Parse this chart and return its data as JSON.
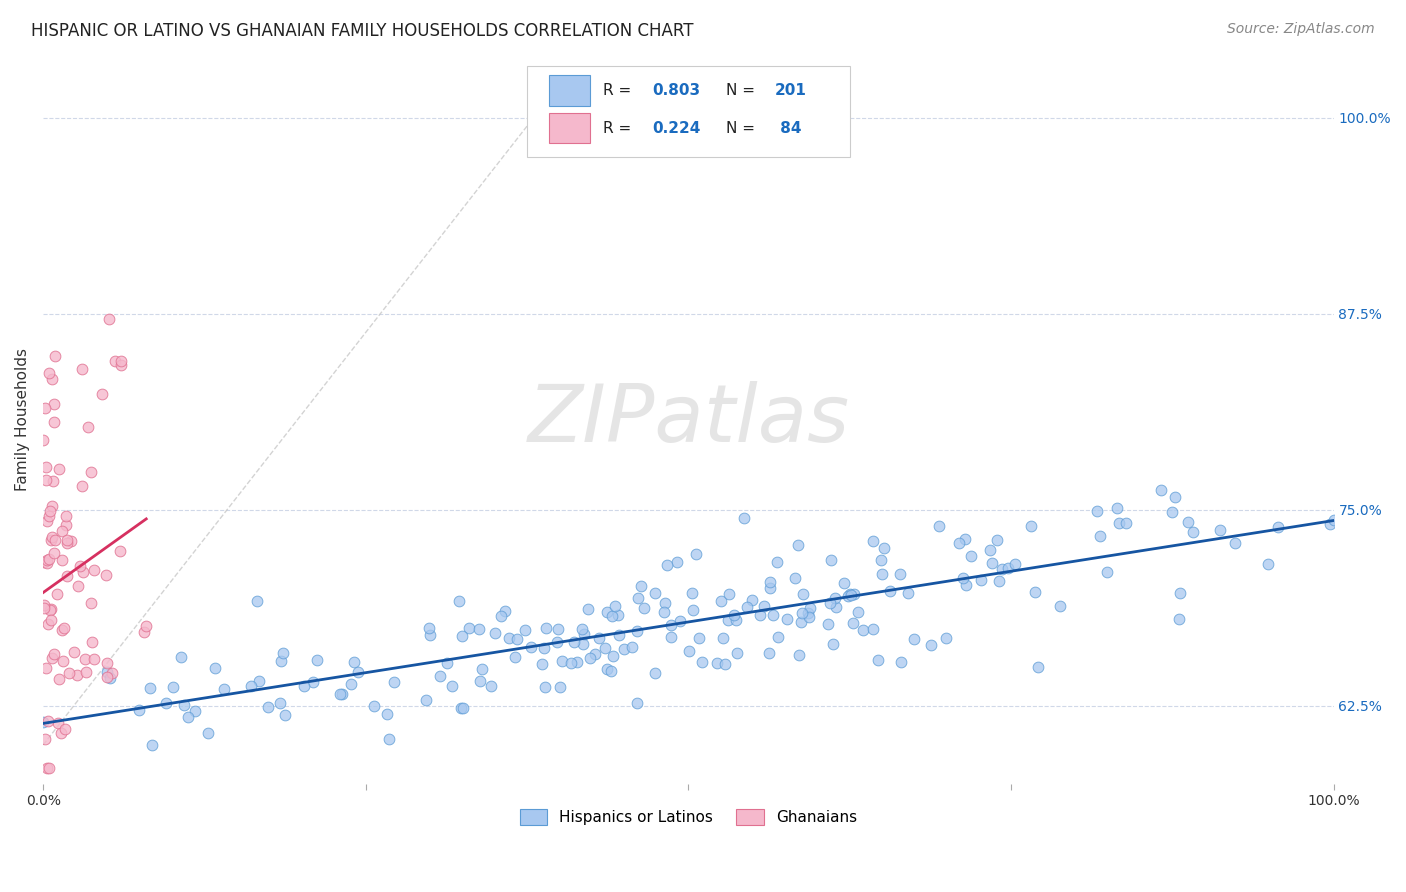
{
  "title": "HISPANIC OR LATINO VS GHANAIAN FAMILY HOUSEHOLDS CORRELATION CHART",
  "source": "Source: ZipAtlas.com",
  "ylabel": "Family Households",
  "y_ticks": [
    "62.5%",
    "75.0%",
    "87.5%",
    "100.0%"
  ],
  "y_tick_vals": [
    0.625,
    0.75,
    0.875,
    1.0
  ],
  "x_lim": [
    0.0,
    1.0
  ],
  "y_lim": [
    0.575,
    1.04
  ],
  "blue_scatter_color": "#a8c8f0",
  "blue_scatter_edge": "#5b9bd5",
  "pink_scatter_color": "#f5b8cc",
  "pink_scatter_edge": "#e07090",
  "blue_line_color": "#1655a2",
  "pink_line_color": "#d63060",
  "diagonal_color": "#c8c8c8",
  "watermark": "ZIPatlas",
  "legend_box_color": "#aec6f0",
  "legend_box_edge_blue": "#5b9bd5",
  "legend_box_pink": "#f5b8cc",
  "legend_box_edge_pink": "#e07090",
  "legend_R_color": "#1a6bbf",
  "legend_N_color": "#1a6bbf",
  "legend_text_color": "#222222",
  "title_fontsize": 12,
  "source_fontsize": 10,
  "axis_label_fontsize": 11,
  "tick_fontsize": 10,
  "legend_fontsize": 12
}
